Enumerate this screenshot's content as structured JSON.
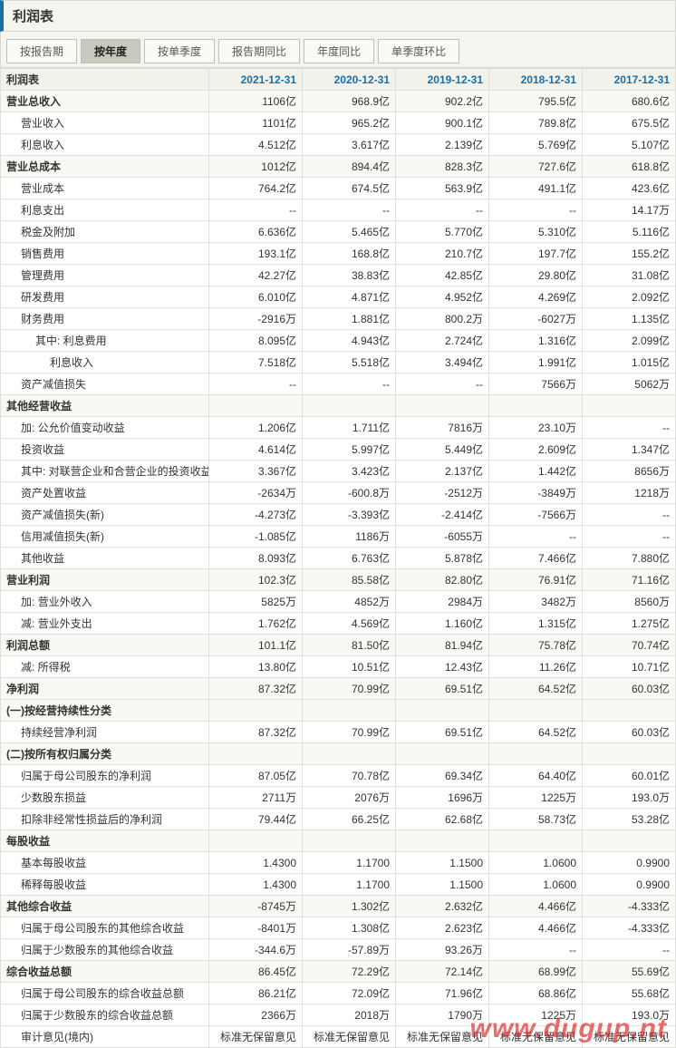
{
  "title": "利润表",
  "tabs": [
    "按报告期",
    "按年度",
    "按单季度",
    "报告期同比",
    "年度同比",
    "单季度环比"
  ],
  "active_tab": 1,
  "table_header": "利润表",
  "columns": [
    "2021-12-31",
    "2020-12-31",
    "2019-12-31",
    "2018-12-31",
    "2017-12-31"
  ],
  "watermark": "www.dugup.nt",
  "rows": [
    {
      "label": "营业总收入",
      "section": true,
      "vals": [
        "1106亿",
        "968.9亿",
        "902.2亿",
        "795.5亿",
        "680.6亿"
      ]
    },
    {
      "label": "营业收入",
      "indent": 1,
      "vals": [
        "1101亿",
        "965.2亿",
        "900.1亿",
        "789.8亿",
        "675.5亿"
      ]
    },
    {
      "label": "利息收入",
      "indent": 1,
      "vals": [
        "4.512亿",
        "3.617亿",
        "2.139亿",
        "5.769亿",
        "5.107亿"
      ]
    },
    {
      "label": "营业总成本",
      "section": true,
      "vals": [
        "1012亿",
        "894.4亿",
        "828.3亿",
        "727.6亿",
        "618.8亿"
      ]
    },
    {
      "label": "营业成本",
      "indent": 1,
      "vals": [
        "764.2亿",
        "674.5亿",
        "563.9亿",
        "491.1亿",
        "423.6亿"
      ]
    },
    {
      "label": "利息支出",
      "indent": 1,
      "vals": [
        "--",
        "--",
        "--",
        "--",
        "14.17万"
      ]
    },
    {
      "label": "税金及附加",
      "indent": 1,
      "vals": [
        "6.636亿",
        "5.465亿",
        "5.770亿",
        "5.310亿",
        "5.116亿"
      ]
    },
    {
      "label": "销售费用",
      "indent": 1,
      "vals": [
        "193.1亿",
        "168.8亿",
        "210.7亿",
        "197.7亿",
        "155.2亿"
      ]
    },
    {
      "label": "管理费用",
      "indent": 1,
      "vals": [
        "42.27亿",
        "38.83亿",
        "42.85亿",
        "29.80亿",
        "31.08亿"
      ]
    },
    {
      "label": "研发费用",
      "indent": 1,
      "vals": [
        "6.010亿",
        "4.871亿",
        "4.952亿",
        "4.269亿",
        "2.092亿"
      ]
    },
    {
      "label": "财务费用",
      "indent": 1,
      "vals": [
        "-2916万",
        "1.881亿",
        "800.2万",
        "-6027万",
        "1.135亿"
      ]
    },
    {
      "label": "其中: 利息费用",
      "indent": 2,
      "vals": [
        "8.095亿",
        "4.943亿",
        "2.724亿",
        "1.316亿",
        "2.099亿"
      ]
    },
    {
      "label": "利息收入",
      "indent": 3,
      "vals": [
        "7.518亿",
        "5.518亿",
        "3.494亿",
        "1.991亿",
        "1.015亿"
      ]
    },
    {
      "label": "资产减值损失",
      "indent": 1,
      "vals": [
        "--",
        "--",
        "--",
        "7566万",
        "5062万"
      ]
    },
    {
      "label": "其他经营收益",
      "section": true,
      "vals": [
        "",
        "",
        "",
        "",
        ""
      ]
    },
    {
      "label": "加: 公允价值变动收益",
      "indent": 1,
      "vals": [
        "1.206亿",
        "1.711亿",
        "7816万",
        "23.10万",
        "--"
      ]
    },
    {
      "label": "投资收益",
      "indent": 1,
      "vals": [
        "4.614亿",
        "5.997亿",
        "5.449亿",
        "2.609亿",
        "1.347亿"
      ]
    },
    {
      "label": "其中: 对联营企业和合营企业的投资收益",
      "indent": 1,
      "vals": [
        "3.367亿",
        "3.423亿",
        "2.137亿",
        "1.442亿",
        "8656万"
      ]
    },
    {
      "label": "资产处置收益",
      "indent": 1,
      "vals": [
        "-2634万",
        "-600.8万",
        "-2512万",
        "-3849万",
        "1218万"
      ]
    },
    {
      "label": "资产减值损失(新)",
      "indent": 1,
      "vals": [
        "-4.273亿",
        "-3.393亿",
        "-2.414亿",
        "-7566万",
        "--"
      ]
    },
    {
      "label": "信用减值损失(新)",
      "indent": 1,
      "vals": [
        "-1.085亿",
        "1186万",
        "-6055万",
        "--",
        "--"
      ]
    },
    {
      "label": "其他收益",
      "indent": 1,
      "vals": [
        "8.093亿",
        "6.763亿",
        "5.878亿",
        "7.466亿",
        "7.880亿"
      ]
    },
    {
      "label": "营业利润",
      "section": true,
      "vals": [
        "102.3亿",
        "85.58亿",
        "82.80亿",
        "76.91亿",
        "71.16亿"
      ]
    },
    {
      "label": "加: 营业外收入",
      "indent": 1,
      "vals": [
        "5825万",
        "4852万",
        "2984万",
        "3482万",
        "8560万"
      ]
    },
    {
      "label": "减: 营业外支出",
      "indent": 1,
      "vals": [
        "1.762亿",
        "4.569亿",
        "1.160亿",
        "1.315亿",
        "1.275亿"
      ]
    },
    {
      "label": "利润总额",
      "section": true,
      "vals": [
        "101.1亿",
        "81.50亿",
        "81.94亿",
        "75.78亿",
        "70.74亿"
      ]
    },
    {
      "label": "减: 所得税",
      "indent": 1,
      "vals": [
        "13.80亿",
        "10.51亿",
        "12.43亿",
        "11.26亿",
        "10.71亿"
      ]
    },
    {
      "label": "净利润",
      "section": true,
      "vals": [
        "87.32亿",
        "70.99亿",
        "69.51亿",
        "64.52亿",
        "60.03亿"
      ]
    },
    {
      "label": "(一)按经营持续性分类",
      "section": true,
      "vals": [
        "",
        "",
        "",
        "",
        ""
      ]
    },
    {
      "label": "持续经营净利润",
      "indent": 1,
      "vals": [
        "87.32亿",
        "70.99亿",
        "69.51亿",
        "64.52亿",
        "60.03亿"
      ]
    },
    {
      "label": "(二)按所有权归属分类",
      "section": true,
      "vals": [
        "",
        "",
        "",
        "",
        ""
      ]
    },
    {
      "label": "归属于母公司股东的净利润",
      "indent": 1,
      "vals": [
        "87.05亿",
        "70.78亿",
        "69.34亿",
        "64.40亿",
        "60.01亿"
      ]
    },
    {
      "label": "少数股东损益",
      "indent": 1,
      "vals": [
        "2711万",
        "2076万",
        "1696万",
        "1225万",
        "193.0万"
      ]
    },
    {
      "label": "扣除非经常性损益后的净利润",
      "indent": 1,
      "vals": [
        "79.44亿",
        "66.25亿",
        "62.68亿",
        "58.73亿",
        "53.28亿"
      ]
    },
    {
      "label": "每股收益",
      "section": true,
      "vals": [
        "",
        "",
        "",
        "",
        ""
      ]
    },
    {
      "label": "基本每股收益",
      "indent": 1,
      "vals": [
        "1.4300",
        "1.1700",
        "1.1500",
        "1.0600",
        "0.9900"
      ]
    },
    {
      "label": "稀释每股收益",
      "indent": 1,
      "vals": [
        "1.4300",
        "1.1700",
        "1.1500",
        "1.0600",
        "0.9900"
      ]
    },
    {
      "label": "其他综合收益",
      "section": true,
      "vals": [
        "-8745万",
        "1.302亿",
        "2.632亿",
        "4.466亿",
        "-4.333亿"
      ]
    },
    {
      "label": "归属于母公司股东的其他综合收益",
      "indent": 1,
      "vals": [
        "-8401万",
        "1.308亿",
        "2.623亿",
        "4.466亿",
        "-4.333亿"
      ]
    },
    {
      "label": "归属于少数股东的其他综合收益",
      "indent": 1,
      "vals": [
        "-344.6万",
        "-57.89万",
        "93.26万",
        "--",
        "--"
      ]
    },
    {
      "label": "综合收益总额",
      "section": true,
      "vals": [
        "86.45亿",
        "72.29亿",
        "72.14亿",
        "68.99亿",
        "55.69亿"
      ]
    },
    {
      "label": "归属于母公司股东的综合收益总额",
      "indent": 1,
      "vals": [
        "86.21亿",
        "72.09亿",
        "71.96亿",
        "68.86亿",
        "55.68亿"
      ]
    },
    {
      "label": "归属于少数股东的综合收益总额",
      "indent": 1,
      "vals": [
        "2366万",
        "2018万",
        "1790万",
        "1225万",
        "193.0万"
      ]
    },
    {
      "label": "审计意见(境内)",
      "indent": 1,
      "vals": [
        "标准无保留意见",
        "标准无保留意见",
        "标准无保留意见",
        "标准无保留意见",
        "标准无保留意见"
      ]
    }
  ]
}
